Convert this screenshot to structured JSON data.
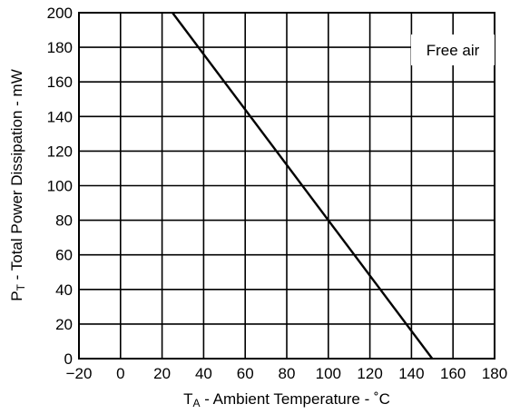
{
  "chart_data": {
    "type": "line",
    "title": "",
    "xlabel_main": "T",
    "xlabel_sub": "A",
    "xlabel_rest": " - Ambient Temperature - ˚C",
    "ylabel_main": "P",
    "ylabel_sub": "T",
    "ylabel_rest": " - Total Power Dissipation - mW",
    "annotation": "Free air",
    "xlim": [
      -20,
      180
    ],
    "ylim": [
      0,
      200
    ],
    "x_ticks": [
      -20,
      0,
      20,
      40,
      60,
      80,
      100,
      120,
      140,
      160,
      180
    ],
    "y_ticks": [
      0,
      20,
      40,
      60,
      80,
      100,
      120,
      140,
      160,
      180,
      200
    ],
    "grid": true,
    "series": [
      {
        "x": [
          25,
          150
        ],
        "y": [
          200,
          0
        ]
      }
    ],
    "colors": {
      "line": "#000000",
      "grid": "#000000",
      "background": "#ffffff"
    }
  }
}
